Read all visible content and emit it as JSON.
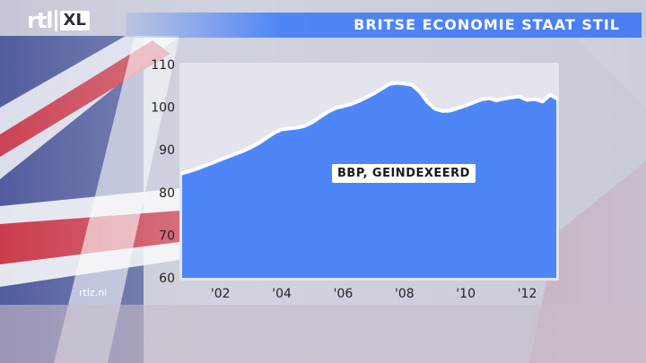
{
  "brand": {
    "logo_rtl": "rtl",
    "logo_xl": "XL",
    "site": "rtlz.nl"
  },
  "header": {
    "title": "BRITSE ECONOMIE STAAT STIL"
  },
  "colors": {
    "area_fill": "#4f86f7",
    "line": "#ffffff",
    "plot_bg": "#e4e5ec",
    "title_bar": "#4a7ef2"
  },
  "chart_data": {
    "type": "area",
    "title": "BRITSE ECONOMIE STAAT STIL",
    "annotation": "BBP, GEINDEXEERD",
    "xlabel": "",
    "ylabel": "",
    "xlim": [
      2000.75,
      2012.95
    ],
    "ylim": [
      60,
      110
    ],
    "x_ticks": [
      2002,
      2004,
      2006,
      2008,
      2010,
      2012
    ],
    "x_tick_labels": [
      "'02",
      "'04",
      "'06",
      "'08",
      "'10",
      "'12"
    ],
    "y_ticks": [
      60,
      70,
      80,
      90,
      100,
      110
    ],
    "y_tick_labels": [
      "60",
      "70",
      "80",
      "90",
      "100",
      "110"
    ],
    "grid": false,
    "series": [
      {
        "x": [
          2000.75,
          2001.0,
          2001.25,
          2001.5,
          2001.75,
          2002.0,
          2002.25,
          2002.5,
          2002.75,
          2003.0,
          2003.25,
          2003.5,
          2003.75,
          2004.0,
          2004.25,
          2004.5,
          2004.75,
          2005.0,
          2005.25,
          2005.5,
          2005.75,
          2006.0,
          2006.25,
          2006.5,
          2006.75,
          2007.0,
          2007.25,
          2007.5,
          2007.75,
          2008.0,
          2008.25,
          2008.5,
          2008.75,
          2009.0,
          2009.25,
          2009.5,
          2009.75,
          2010.0,
          2010.25,
          2010.5,
          2010.75,
          2011.0,
          2011.25,
          2011.5,
          2011.75,
          2012.0,
          2012.25,
          2012.5,
          2012.75,
          2012.95
        ],
        "values": [
          84.5,
          85.0,
          85.6,
          86.3,
          87.0,
          87.7,
          88.4,
          89.1,
          89.8,
          90.6,
          91.6,
          92.8,
          94.0,
          94.8,
          95.0,
          95.2,
          95.6,
          96.5,
          97.7,
          98.9,
          99.8,
          100.2,
          100.7,
          101.4,
          102.3,
          103.2,
          104.3,
          105.4,
          105.7,
          105.5,
          105.2,
          103.6,
          101.2,
          99.6,
          99.1,
          99.2,
          99.8,
          100.4,
          101.1,
          101.8,
          102.1,
          101.6,
          102.0,
          102.3,
          102.5,
          101.7,
          101.9,
          101.3,
          102.9,
          102.1
        ]
      }
    ]
  }
}
